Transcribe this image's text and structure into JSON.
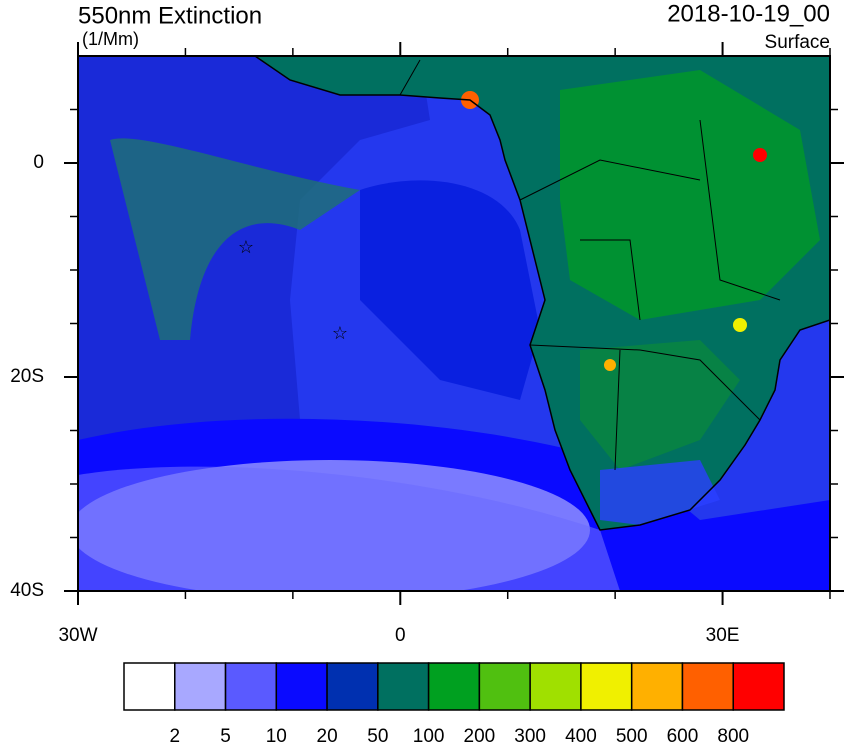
{
  "chart_data": {
    "type": "map",
    "title": "550nm Extinction",
    "units": "(1/Mm)",
    "date": "2018-10-19_00",
    "level": "Surface",
    "xlim": [
      -30,
      40
    ],
    "ylim": [
      -40,
      10
    ],
    "xticks": [
      {
        "value": -30,
        "label": "30W"
      },
      0,
      {
        "value": 30,
        "label": "30E"
      }
    ],
    "yticks": [
      {
        "value": -40,
        "label": "40S"
      },
      {
        "value": -20,
        "label": "20S"
      },
      0
    ],
    "xticks_minor": [
      -20,
      -10,
      10,
      20,
      40
    ],
    "yticks_minor": [
      -35,
      -30,
      -25,
      -15,
      -10,
      -5,
      5
    ],
    "colorbar": {
      "levels": [
        2,
        5,
        10,
        20,
        50,
        100,
        200,
        300,
        400,
        500,
        600,
        800
      ],
      "colors": [
        "#ffffff",
        "#a8a8ff",
        "#5a5aff",
        "#0a0aff",
        "#0030b0",
        "#007060",
        "#00a020",
        "#50c010",
        "#a0e000",
        "#f0f000",
        "#ffb000",
        "#ff6000",
        "#ff0000"
      ]
    }
  }
}
